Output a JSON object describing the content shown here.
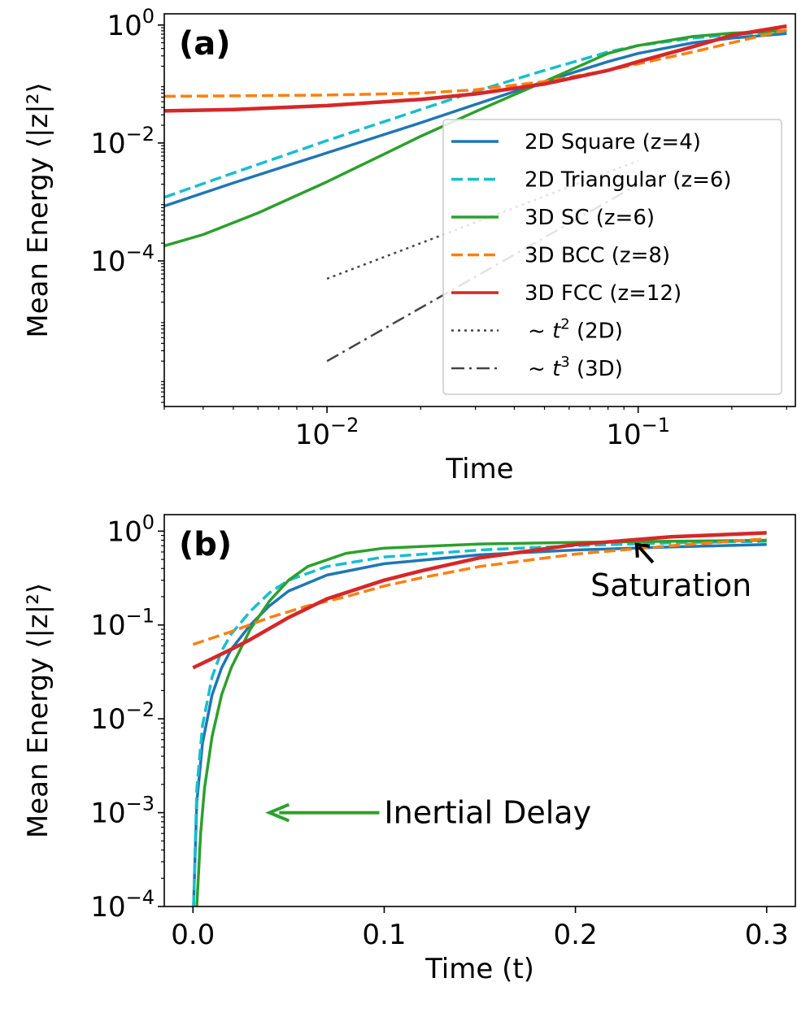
{
  "chart_data": [
    {
      "panel": "(a)",
      "type": "line",
      "xscale": "log",
      "yscale": "log",
      "xlim": [
        0.003,
        0.32
      ],
      "ylim": [
        3.4e-07,
        1.55
      ],
      "xlabel": "Time",
      "ylabel": "Mean Energy ⟨|z|²⟩",
      "xticks": [
        {
          "value": 0.01,
          "base": "10",
          "exp": "−2"
        },
        {
          "value": 0.1,
          "base": "10",
          "exp": "−1"
        }
      ],
      "yticks": [
        {
          "value": 0.0001,
          "base": "10",
          "exp": "−4"
        },
        {
          "value": 0.01,
          "base": "10",
          "exp": "−2"
        },
        {
          "value": 1,
          "base": "10",
          "exp": "0"
        }
      ],
      "legend_position": "center-right",
      "series": [
        {
          "name": "2D Square (z=4)",
          "color": "#1f77b4",
          "dash": "solid",
          "points": [
            [
              0.003,
              0.00085
            ],
            [
              0.005,
              0.0021
            ],
            [
              0.01,
              0.0068
            ],
            [
              0.02,
              0.022
            ],
            [
              0.03,
              0.045
            ],
            [
              0.05,
              0.11
            ],
            [
              0.08,
              0.24
            ],
            [
              0.1,
              0.33
            ],
            [
              0.15,
              0.5
            ],
            [
              0.2,
              0.6
            ],
            [
              0.3,
              0.72
            ]
          ]
        },
        {
          "name": "2D Triangular (z=6)",
          "color": "#17becf",
          "dash": "dashed",
          "points": [
            [
              0.003,
              0.0012
            ],
            [
              0.005,
              0.0031
            ],
            [
              0.01,
              0.011
            ],
            [
              0.02,
              0.037
            ],
            [
              0.03,
              0.075
            ],
            [
              0.05,
              0.17
            ],
            [
              0.08,
              0.35
            ],
            [
              0.1,
              0.45
            ],
            [
              0.15,
              0.6
            ],
            [
              0.2,
              0.69
            ],
            [
              0.3,
              0.78
            ]
          ]
        },
        {
          "name": "3D SC (z=6)",
          "color": "#2ca02c",
          "dash": "solid",
          "points": [
            [
              0.003,
              0.00018
            ],
            [
              0.004,
              0.00028
            ],
            [
              0.006,
              0.00065
            ],
            [
              0.01,
              0.0022
            ],
            [
              0.015,
              0.0062
            ],
            [
              0.02,
              0.013
            ],
            [
              0.03,
              0.034
            ],
            [
              0.05,
              0.11
            ],
            [
              0.08,
              0.33
            ],
            [
              0.1,
              0.45
            ],
            [
              0.15,
              0.64
            ],
            [
              0.2,
              0.73
            ],
            [
              0.3,
              0.8
            ]
          ]
        },
        {
          "name": "3D BCC (z=8)",
          "color": "#ff7f0e",
          "dash": "dashed",
          "points": [
            [
              0.003,
              0.062
            ],
            [
              0.005,
              0.063
            ],
            [
              0.01,
              0.065
            ],
            [
              0.02,
              0.07
            ],
            [
              0.03,
              0.08
            ],
            [
              0.05,
              0.11
            ],
            [
              0.08,
              0.17
            ],
            [
              0.1,
              0.22
            ],
            [
              0.15,
              0.35
            ],
            [
              0.2,
              0.5
            ],
            [
              0.3,
              0.83
            ]
          ]
        },
        {
          "name": "3D FCC (z=12)",
          "color": "#d62728",
          "dash": "solid",
          "points": [
            [
              0.003,
              0.035
            ],
            [
              0.005,
              0.037
            ],
            [
              0.01,
              0.043
            ],
            [
              0.02,
              0.055
            ],
            [
              0.03,
              0.068
            ],
            [
              0.05,
              0.1
            ],
            [
              0.08,
              0.17
            ],
            [
              0.1,
              0.24
            ],
            [
              0.15,
              0.43
            ],
            [
              0.2,
              0.67
            ],
            [
              0.3,
              0.96
            ]
          ]
        },
        {
          "name": "~t² (2D)",
          "label_var": "t",
          "label_exp": "2",
          "label_rest": "(2D)",
          "color": "#444444",
          "dash": "dotted",
          "points": [
            [
              0.01,
              5e-05
            ],
            [
              0.1,
              0.005
            ]
          ]
        },
        {
          "name": "~t³ (3D)",
          "label_var": "t",
          "label_exp": "3",
          "label_rest": "(3D)",
          "color": "#444444",
          "dash": "dashdot",
          "points": [
            [
              0.01,
              2e-06
            ],
            [
              0.1,
              0.002
            ]
          ]
        }
      ]
    },
    {
      "panel": "(b)",
      "type": "line",
      "xscale": "linear",
      "yscale": "log",
      "xlim": [
        -0.015,
        0.315
      ],
      "ylim": [
        0.0001,
        1.5
      ],
      "xlabel": "Time (t)",
      "ylabel": "Mean Energy ⟨|z|²⟩",
      "xticks": [
        {
          "value": 0.0,
          "label": "0.0"
        },
        {
          "value": 0.1,
          "label": "0.1"
        },
        {
          "value": 0.2,
          "label": "0.2"
        },
        {
          "value": 0.3,
          "label": "0.3"
        }
      ],
      "yticks": [
        {
          "value": 0.0001,
          "base": "10",
          "exp": "−4"
        },
        {
          "value": 0.001,
          "base": "10",
          "exp": "−3"
        },
        {
          "value": 0.01,
          "base": "10",
          "exp": "−2"
        },
        {
          "value": 0.1,
          "base": "10",
          "exp": "−1"
        },
        {
          "value": 1,
          "base": "10",
          "exp": "0"
        }
      ],
      "annotations": [
        {
          "text": "Inertial Delay",
          "x": 0.1,
          "y": 0.001,
          "arrow_to": [
            0.04,
            0.001
          ],
          "color": "#2ca02c"
        },
        {
          "text": "Saturation",
          "x": 0.25,
          "y": 0.22,
          "arrow_to": [
            0.232,
            0.72
          ],
          "color": "#000000"
        }
      ],
      "series": [
        {
          "name": "2D Square (z=4)",
          "color": "#1f77b4",
          "dash": "solid",
          "points": [
            [
              0.0003,
              0.0001
            ],
            [
              0.002,
              0.0013
            ],
            [
              0.005,
              0.0055
            ],
            [
              0.01,
              0.018
            ],
            [
              0.015,
              0.035
            ],
            [
              0.02,
              0.055
            ],
            [
              0.03,
              0.1
            ],
            [
              0.04,
              0.16
            ],
            [
              0.05,
              0.23
            ],
            [
              0.07,
              0.34
            ],
            [
              0.1,
              0.45
            ],
            [
              0.15,
              0.56
            ],
            [
              0.2,
              0.63
            ],
            [
              0.25,
              0.68
            ],
            [
              0.3,
              0.72
            ]
          ]
        },
        {
          "name": "2D Triangular (z=6)",
          "color": "#17becf",
          "dash": "dashed",
          "points": [
            [
              0.0003,
              0.0001
            ],
            [
              0.002,
              0.0018
            ],
            [
              0.005,
              0.0085
            ],
            [
              0.01,
              0.028
            ],
            [
              0.015,
              0.053
            ],
            [
              0.02,
              0.08
            ],
            [
              0.03,
              0.14
            ],
            [
              0.04,
              0.22
            ],
            [
              0.05,
              0.3
            ],
            [
              0.07,
              0.42
            ],
            [
              0.1,
              0.53
            ],
            [
              0.15,
              0.63
            ],
            [
              0.2,
              0.7
            ],
            [
              0.25,
              0.75
            ],
            [
              0.3,
              0.78
            ]
          ]
        },
        {
          "name": "3D SC (z=6)",
          "color": "#2ca02c",
          "dash": "solid",
          "points": [
            [
              0.002,
              0.0001
            ],
            [
              0.004,
              0.0006
            ],
            [
              0.006,
              0.0018
            ],
            [
              0.01,
              0.0065
            ],
            [
              0.015,
              0.018
            ],
            [
              0.02,
              0.035
            ],
            [
              0.03,
              0.09
            ],
            [
              0.04,
              0.18
            ],
            [
              0.05,
              0.3
            ],
            [
              0.06,
              0.42
            ],
            [
              0.08,
              0.58
            ],
            [
              0.1,
              0.66
            ],
            [
              0.15,
              0.73
            ],
            [
              0.2,
              0.76
            ],
            [
              0.25,
              0.78
            ],
            [
              0.3,
              0.8
            ]
          ]
        },
        {
          "name": "3D BCC (z=8)",
          "color": "#ff7f0e",
          "dash": "dashed",
          "points": [
            [
              0.0,
              0.062
            ],
            [
              0.02,
              0.085
            ],
            [
              0.04,
              0.12
            ],
            [
              0.06,
              0.16
            ],
            [
              0.08,
              0.2
            ],
            [
              0.1,
              0.26
            ],
            [
              0.12,
              0.32
            ],
            [
              0.15,
              0.42
            ],
            [
              0.2,
              0.57
            ],
            [
              0.25,
              0.7
            ],
            [
              0.3,
              0.83
            ]
          ]
        },
        {
          "name": "3D FCC (z=12)",
          "color": "#d62728",
          "dash": "solid",
          "points": [
            [
              0.0,
              0.035
            ],
            [
              0.02,
              0.055
            ],
            [
              0.03,
              0.07
            ],
            [
              0.05,
              0.12
            ],
            [
              0.07,
              0.19
            ],
            [
              0.1,
              0.3
            ],
            [
              0.12,
              0.38
            ],
            [
              0.15,
              0.52
            ],
            [
              0.2,
              0.72
            ],
            [
              0.25,
              0.87
            ],
            [
              0.3,
              0.96
            ]
          ]
        }
      ]
    }
  ]
}
